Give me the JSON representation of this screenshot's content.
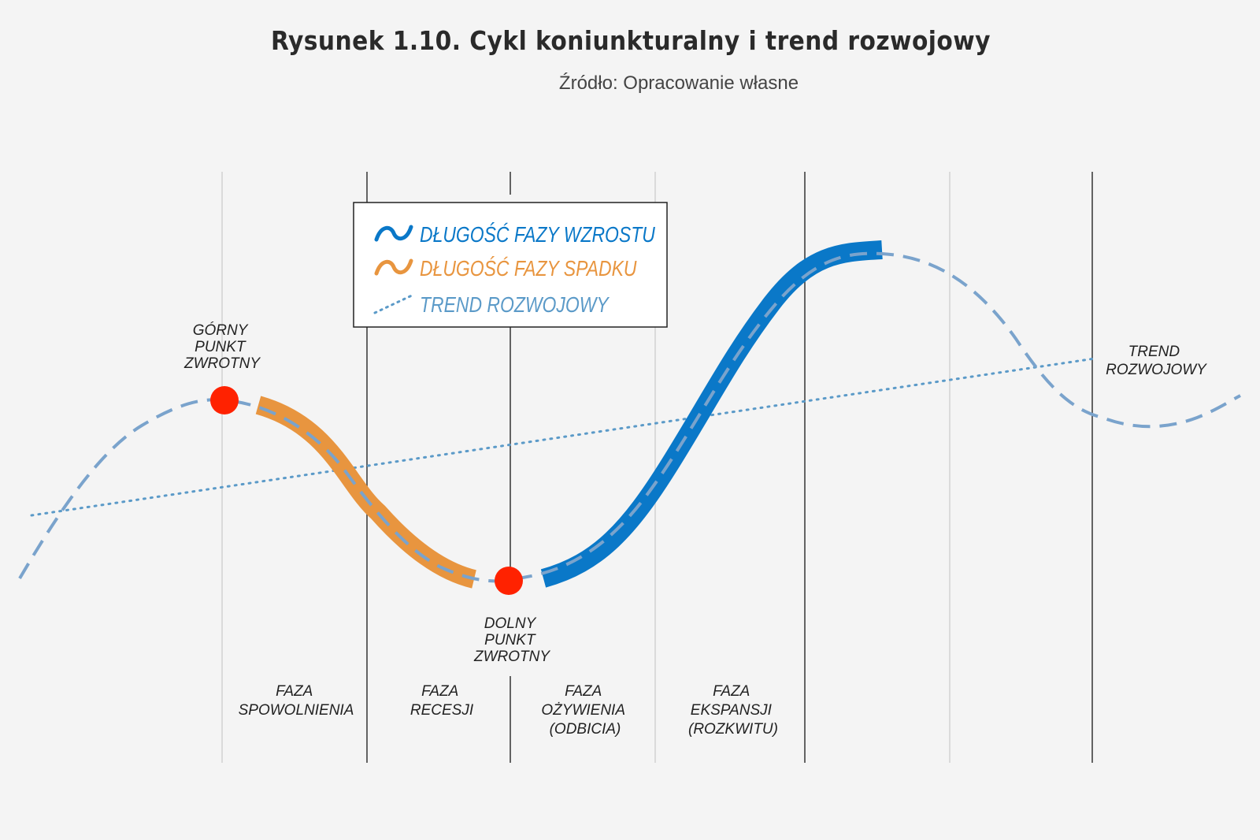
{
  "title": "Rysunek 1.10. Cykl koniunkturalny i trend rozwojowy",
  "subtitle": "Źródło: Opracowanie własne",
  "colors": {
    "growth": "#0a78c8",
    "decline": "#e8953f",
    "cycle_line": "#7aa3cc",
    "trend_line": "#5b9ac8",
    "turning_point": "#ff2200"
  },
  "legend": {
    "growth_label": "DŁUGOŚĆ FAZY WZROSTU",
    "decline_label": "DŁUGOŚĆ FAZY SPADKU",
    "trend_label": "TREND ROZWOJOWY"
  },
  "points": {
    "top": [
      "GÓRNY",
      "PUNKT",
      "ZWROTNY"
    ],
    "bottom": [
      "DOLNY",
      "PUNKT",
      "ZWROTNY"
    ]
  },
  "trend_label": [
    "TREND",
    "ROZWOJOWY"
  ],
  "phases": [
    {
      "lines": [
        "FAZA",
        "SPOWOLNIENIA"
      ]
    },
    {
      "lines": [
        "FAZA",
        "RECESJI"
      ]
    },
    {
      "lines": [
        "FAZA",
        "OŻYWIENIA",
        "(ODBICIA)"
      ]
    },
    {
      "lines": [
        "FAZA",
        "EKSPANSJI",
        "(ROZKWITU)"
      ]
    }
  ]
}
